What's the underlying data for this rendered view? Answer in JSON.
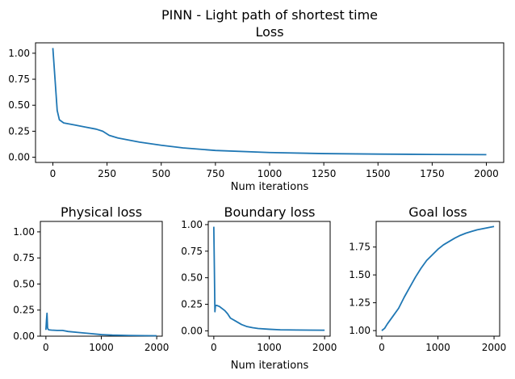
{
  "figure": {
    "suptitle": "PINN - Light path of shortest time"
  },
  "chart_data": [
    {
      "type": "line",
      "title": "Loss",
      "xlabel": "Num iterations",
      "ylabel": "",
      "xlim": [
        -80,
        2080
      ],
      "ylim": [
        -0.05,
        1.1
      ],
      "xticks": [
        0,
        250,
        500,
        750,
        1000,
        1250,
        1500,
        1750,
        2000
      ],
      "xtick_labels": [
        "0",
        "250",
        "500",
        "750",
        "1000",
        "1250",
        "1500",
        "1750",
        "2000"
      ],
      "yticks": [
        0.0,
        0.25,
        0.5,
        0.75,
        1.0
      ],
      "ytick_labels": [
        "0.00",
        "0.25",
        "0.50",
        "0.75",
        "1.00"
      ],
      "grid": false,
      "x": [
        0,
        10,
        20,
        30,
        50,
        100,
        150,
        200,
        230,
        260,
        300,
        400,
        500,
        600,
        750,
        1000,
        1250,
        1500,
        1750,
        2000
      ],
      "y": [
        1.05,
        0.75,
        0.45,
        0.36,
        0.33,
        0.31,
        0.29,
        0.27,
        0.25,
        0.21,
        0.185,
        0.145,
        0.115,
        0.09,
        0.065,
        0.045,
        0.035,
        0.03,
        0.027,
        0.025
      ]
    },
    {
      "type": "line",
      "title": "Physical loss",
      "xlabel": "",
      "ylabel": "",
      "xlim": [
        -100,
        2100
      ],
      "ylim": [
        0.0,
        1.1
      ],
      "xticks": [
        0,
        1000,
        2000
      ],
      "xtick_labels": [
        "0",
        "1000",
        "2000"
      ],
      "yticks": [
        0.0,
        0.25,
        0.5,
        0.75,
        1.0
      ],
      "ytick_labels": [
        "0.00",
        "0.25",
        "0.50",
        "0.75",
        "1.00"
      ],
      "grid": false,
      "x": [
        0,
        10,
        20,
        30,
        40,
        60,
        100,
        200,
        300,
        400,
        600,
        800,
        1000,
        1200,
        1500,
        1800,
        2000
      ],
      "y": [
        0.06,
        0.15,
        0.22,
        0.08,
        0.065,
        0.06,
        0.058,
        0.055,
        0.055,
        0.045,
        0.035,
        0.025,
        0.015,
        0.01,
        0.007,
        0.005,
        0.004
      ]
    },
    {
      "type": "line",
      "title": "Boundary loss",
      "xlabel": "Num iterations",
      "ylabel": "",
      "xlim": [
        -100,
        2100
      ],
      "ylim": [
        -0.05,
        1.03
      ],
      "xticks": [
        0,
        1000,
        2000
      ],
      "xtick_labels": [
        "0",
        "1000",
        "2000"
      ],
      "yticks": [
        0.0,
        0.25,
        0.5,
        0.75,
        1.0
      ],
      "ytick_labels": [
        "0.00",
        "0.25",
        "0.50",
        "0.75",
        "1.00"
      ],
      "grid": false,
      "x": [
        0,
        10,
        20,
        30,
        50,
        100,
        150,
        200,
        250,
        300,
        400,
        500,
        600,
        700,
        800,
        1000,
        1200,
        1500,
        2000
      ],
      "y": [
        0.98,
        0.6,
        0.18,
        0.24,
        0.24,
        0.23,
        0.21,
        0.19,
        0.16,
        0.12,
        0.09,
        0.06,
        0.04,
        0.03,
        0.022,
        0.015,
        0.01,
        0.008,
        0.006
      ]
    },
    {
      "type": "line",
      "title": "Goal loss",
      "xlabel": "",
      "ylabel": "",
      "xlim": [
        -100,
        2100
      ],
      "ylim": [
        0.95,
        1.98
      ],
      "xticks": [
        0,
        1000,
        2000
      ],
      "xtick_labels": [
        "0",
        "1000",
        "2000"
      ],
      "yticks": [
        1.0,
        1.25,
        1.5,
        1.75
      ],
      "ytick_labels": [
        "1.00",
        "1.25",
        "1.50",
        "1.75"
      ],
      "grid": false,
      "x": [
        0,
        50,
        100,
        200,
        300,
        400,
        500,
        600,
        700,
        800,
        900,
        1000,
        1100,
        1200,
        1300,
        1400,
        1500,
        1600,
        1700,
        1800,
        1900,
        2000
      ],
      "y": [
        1.0,
        1.02,
        1.06,
        1.13,
        1.2,
        1.3,
        1.39,
        1.48,
        1.56,
        1.63,
        1.68,
        1.73,
        1.77,
        1.8,
        1.83,
        1.855,
        1.875,
        1.89,
        1.905,
        1.915,
        1.925,
        1.935
      ]
    }
  ]
}
